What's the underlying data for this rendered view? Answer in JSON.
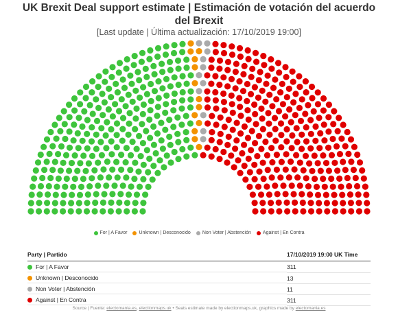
{
  "title": "UK Brexit Deal support estimate | Estimación de votación del acuerdo del Brexit",
  "subtitle": "[Last update | Última actualización: 17/10/2019 19:00]",
  "chart_data": {
    "type": "parliament",
    "title": "UK Brexit Deal support estimate | Estimación de votación del acuerdo del Brexit",
    "categories": [
      "For | A Favor",
      "Unknown | Desconocido",
      "Non Voter | Abstención",
      "Against | En Contra"
    ],
    "values": [
      311,
      13,
      11,
      311
    ],
    "colors": [
      "#3ec43c",
      "#f39200",
      "#aaaaaa",
      "#e00000"
    ],
    "legend_position": "bottom"
  },
  "legend": [
    {
      "label": "For | A Favor",
      "color": "#3ec43c"
    },
    {
      "label": "Unknown | Desconocido",
      "color": "#f39200"
    },
    {
      "label": "Non Voter | Abstención",
      "color": "#aaaaaa"
    },
    {
      "label": "Against | En Contra",
      "color": "#e00000"
    }
  ],
  "table": {
    "header_party": "Party | Partido",
    "header_value": "17/10/2019 19:00 UK Time",
    "rows": [
      {
        "party": "For | A Favor",
        "value": "311",
        "color": "#3ec43c"
      },
      {
        "party": "Unknown | Desconocido",
        "value": "13",
        "color": "#f39200"
      },
      {
        "party": "Non Voter | Abstención",
        "value": "11",
        "color": "#aaaaaa"
      },
      {
        "party": "Against | En Contra",
        "value": "311",
        "color": "#e00000"
      }
    ]
  },
  "footer": {
    "prefix": "Source | Fuente: ",
    "link1": "electomania.es",
    "sep": ", ",
    "link2": "electionmaps.uk",
    "middle": " • Seats estimate made by electionmaps.uk, graphics made by ",
    "link3": "electomania.es"
  }
}
